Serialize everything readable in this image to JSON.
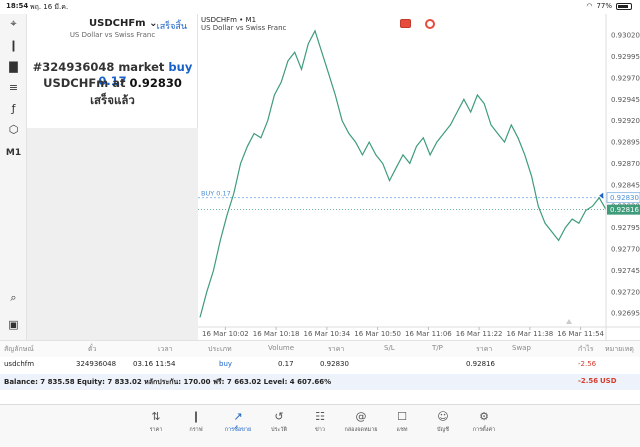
{
  "status_bar": {
    "time": "18:54",
    "date": "พฤ. 16 มี.ค.",
    "battery": "77%"
  },
  "left_toolbar": {
    "items": [
      {
        "name": "crosshair-icon",
        "glyph": "⌖"
      },
      {
        "name": "candles-icon",
        "glyph": "❙"
      },
      {
        "name": "bars-icon",
        "glyph": "▇"
      },
      {
        "name": "indicators-icon",
        "glyph": "≡"
      },
      {
        "name": "function-icon",
        "glyph": "ƒ"
      },
      {
        "name": "objects-icon",
        "glyph": "⬡"
      },
      {
        "name": "timeframe-label",
        "glyph": "M1"
      }
    ],
    "bottom_items": [
      {
        "name": "search-icon",
        "glyph": "⌕"
      },
      {
        "name": "app-icon",
        "glyph": "▣"
      }
    ]
  },
  "order": {
    "symbol": "USDCHFm ⌄",
    "done_label": "เสร็จสิ้น",
    "description": "US Dollar vs Swiss Franc",
    "line1_prefix": "#324936048 market",
    "line1_accent": "buy 0.17",
    "line2_prefix": "USDCHFm at",
    "line2_price": "0.92830",
    "line3": "เสร็จแล้ว"
  },
  "chart": {
    "title": "USDCHFm • M1",
    "subtitle": "US Dollar vs Swiss Franc",
    "buy_line_label": "BUY 0.17",
    "buy_price_tag": "0.92830",
    "current_price_tag": "0.92816",
    "line_color": "#3e9c7a"
  },
  "chart_data": {
    "type": "line",
    "title": "USDCHFm • M1",
    "ylim": [
      0.9268,
      0.9304
    ],
    "y_ticks": [
      "0.93020",
      "0.92995",
      "0.92970",
      "0.92945",
      "0.92920",
      "0.92895",
      "0.92870",
      "0.92845",
      "0.92820",
      "0.92795",
      "0.92770",
      "0.92745",
      "0.92720",
      "0.92695"
    ],
    "x_ticks": [
      "16 Mar 10:02",
      "16 Mar 10:18",
      "16 Mar 10:34",
      "16 Mar 10:50",
      "16 Mar 11:06",
      "16 Mar 11:22",
      "16 Mar 11:38",
      "16 Mar 11:54"
    ],
    "x_range": [
      0,
      120
    ],
    "buy_level": 0.9283,
    "current_level": 0.92816,
    "x": [
      0,
      2,
      4,
      6,
      8,
      10,
      12,
      14,
      16,
      18,
      20,
      22,
      24,
      26,
      28,
      30,
      32,
      34,
      36,
      38,
      40,
      42,
      44,
      46,
      48,
      50,
      52,
      54,
      56,
      58,
      60,
      62,
      64,
      66,
      68,
      70,
      72,
      74,
      76,
      78,
      80,
      82,
      84,
      86,
      88,
      90,
      92,
      94,
      96,
      98,
      100,
      102,
      104,
      106,
      108,
      110,
      112,
      114,
      116,
      118,
      120
    ],
    "values": [
      0.9269,
      0.9272,
      0.92745,
      0.9278,
      0.9281,
      0.92835,
      0.9287,
      0.9289,
      0.92905,
      0.929,
      0.9292,
      0.9295,
      0.92965,
      0.9299,
      0.93,
      0.9298,
      0.9301,
      0.93025,
      0.93,
      0.92975,
      0.9295,
      0.9292,
      0.92905,
      0.92895,
      0.9288,
      0.92895,
      0.9288,
      0.9287,
      0.9285,
      0.92865,
      0.9288,
      0.9287,
      0.9289,
      0.929,
      0.9288,
      0.92895,
      0.92905,
      0.92915,
      0.9293,
      0.92945,
      0.9293,
      0.9295,
      0.9294,
      0.92915,
      0.92905,
      0.92895,
      0.92915,
      0.929,
      0.9288,
      0.92855,
      0.9282,
      0.928,
      0.9279,
      0.9278,
      0.92795,
      0.92805,
      0.928,
      0.92815,
      0.9282,
      0.9283,
      0.92816
    ]
  },
  "positions": {
    "headers": [
      "สัญลักษณ์",
      "ตั๋ว",
      "เวลา",
      "ประเภท",
      "Volume",
      "ราคา",
      "S/L",
      "T/P",
      "ราคา",
      "Swap",
      "กำไร",
      "หมายเหตุ"
    ],
    "row": {
      "symbol": "usdchfm",
      "ticket": "324936048",
      "time": "03.16 11:54",
      "type": "buy",
      "volume": "0.17",
      "price": "0.92830",
      "sl": "",
      "tp": "",
      "current": "0.92816",
      "swap": "",
      "profit": "-2.56",
      "comment": ""
    },
    "balance": {
      "text": "Balance: 7 835.58 Equity: 7 833.02 หลักประกัน: 170.00 ฟรี: 7 663.02 Level: 4 607.66%",
      "profit": "-2.56",
      "currency": "USD"
    }
  },
  "tab_bar": {
    "tabs": [
      {
        "name": "tab-quotes",
        "icon": "quotes-icon",
        "glyph": "⇅",
        "label": "ราคา"
      },
      {
        "name": "tab-chart",
        "icon": "candles-icon",
        "glyph": "❙",
        "label": "กราฟ"
      },
      {
        "name": "tab-trade",
        "icon": "trade-icon",
        "glyph": "↗",
        "label": "การซื้อขาย",
        "active": true
      },
      {
        "name": "tab-history",
        "icon": "history-icon",
        "glyph": "↺",
        "label": "ประวัติ"
      },
      {
        "name": "tab-news",
        "icon": "news-icon",
        "glyph": "☷",
        "label": "ข่าว"
      },
      {
        "name": "tab-mailbox",
        "icon": "mail-icon",
        "glyph": "@",
        "label": "กล่องจดหมาย"
      },
      {
        "name": "tab-chat",
        "icon": "chat-icon",
        "glyph": "☐",
        "label": "แชท"
      },
      {
        "name": "tab-account",
        "icon": "account-icon",
        "glyph": "☺",
        "label": "บัญชี"
      },
      {
        "name": "tab-settings",
        "icon": "gear-icon",
        "glyph": "⚙",
        "label": "การตั้งค่า"
      }
    ]
  }
}
